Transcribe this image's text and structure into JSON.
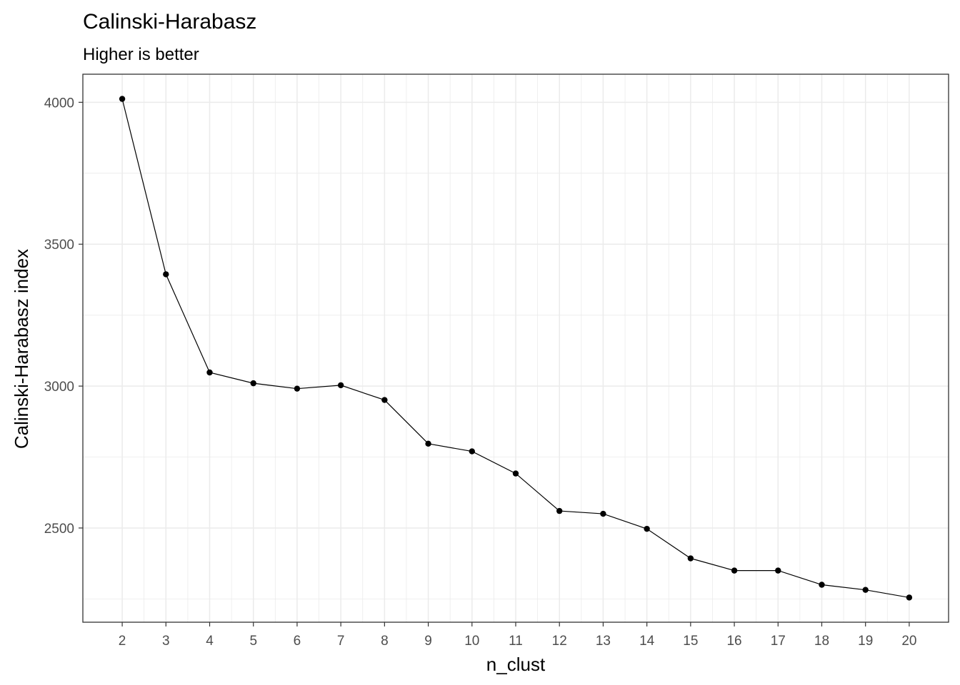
{
  "chart_data": {
    "type": "line",
    "title": "Calinski-Harabasz",
    "subtitle": "Higher is better",
    "xlabel": "n_clust",
    "ylabel": "Calinski-Harabasz index",
    "x": [
      2,
      3,
      4,
      5,
      6,
      7,
      8,
      9,
      10,
      11,
      12,
      13,
      14,
      15,
      16,
      17,
      18,
      19,
      20
    ],
    "series": [
      {
        "values": [
          4012,
          3394,
          3048,
          3010,
          2991,
          3003,
          2951,
          2797,
          2770,
          2692,
          2560,
          2550,
          2497,
          2393,
          2350,
          2350,
          2300,
          2282,
          2255
        ]
      }
    ],
    "xticks": [
      "2",
      "3",
      "4",
      "5",
      "6",
      "7",
      "8",
      "9",
      "10",
      "11",
      "12",
      "13",
      "14",
      "15",
      "16",
      "17",
      "18",
      "19",
      "20"
    ],
    "yticks": [
      2500,
      3000,
      3500,
      4000
    ],
    "xlim": [
      1.1,
      20.9
    ],
    "ylim": [
      2168,
      4099
    ],
    "grid": true,
    "marker": "point",
    "colors": {
      "line": "#000000",
      "grid": "#ebebeb",
      "panel_border": "#333333",
      "tick_label": "#4d4d4d"
    }
  }
}
